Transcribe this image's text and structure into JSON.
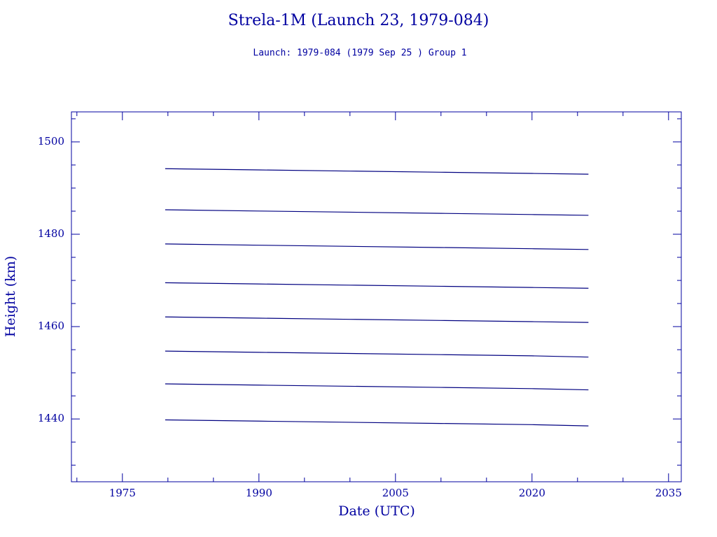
{
  "chart_data": {
    "type": "line",
    "title": "Strela-1M (Launch 23, 1979-084)",
    "subtitle": "Launch: 1979-084  (1979 Sep 25 )  Group 1",
    "xlabel": "Date (UTC)",
    "ylabel": "Height (km)",
    "x": [
      1979.7,
      1990,
      2000,
      2010,
      2020,
      2026.2
    ],
    "series": [
      {
        "color": "#000080",
        "values": [
          1494.2,
          1493.93,
          1493.68,
          1493.43,
          1493.17,
          1493.0
        ]
      },
      {
        "color": "#000080",
        "values": [
          1485.3,
          1485.03,
          1484.78,
          1484.53,
          1484.27,
          1484.1
        ]
      },
      {
        "color": "#000080",
        "values": [
          1477.9,
          1477.63,
          1477.38,
          1477.13,
          1476.87,
          1476.7
        ]
      },
      {
        "color": "#000080",
        "values": [
          1469.5,
          1469.23,
          1468.98,
          1468.73,
          1468.47,
          1468.3
        ]
      },
      {
        "color": "#000080",
        "values": [
          1462.1,
          1461.83,
          1461.58,
          1461.33,
          1461.07,
          1460.9
        ]
      },
      {
        "color": "#000080",
        "values": [
          1454.7,
          1454.43,
          1454.18,
          1453.93,
          1453.67,
          1453.4
        ]
      },
      {
        "color": "#000080",
        "values": [
          1447.6,
          1447.33,
          1447.08,
          1446.83,
          1446.57,
          1446.3
        ]
      },
      {
        "color": "#000080",
        "values": [
          1439.8,
          1439.53,
          1439.28,
          1439.03,
          1438.77,
          1438.5
        ]
      }
    ],
    "xlim": [
      1969.4,
      2036.4
    ],
    "xticks": [
      1975,
      1990,
      2005,
      2020,
      2035
    ],
    "xminorticks": [
      1970,
      1980,
      1985,
      1995,
      2000,
      2010,
      2015,
      2025,
      2030
    ],
    "ylim": [
      1426.4,
      1506.5
    ],
    "yticks": [
      1440,
      1460,
      1480,
      1500
    ],
    "yminorticks": [
      1430,
      1435,
      1445,
      1450,
      1455,
      1465,
      1470,
      1475,
      1485,
      1490,
      1495,
      1505
    ],
    "grid": false
  }
}
